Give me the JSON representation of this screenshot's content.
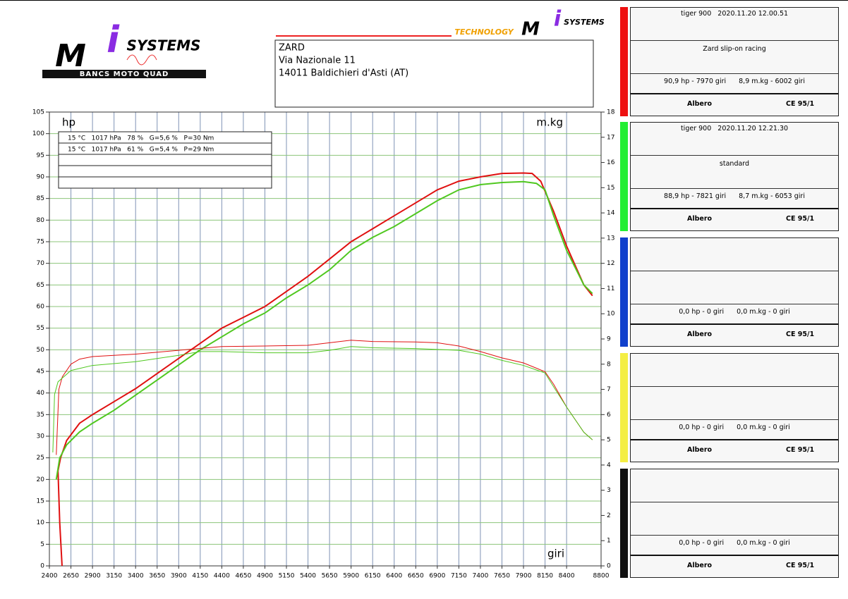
{
  "header": {
    "logo_left": {
      "letter_m": "M",
      "letter_i": "i",
      "word": "SYSTEMS",
      "tagline": "BANCS MOTO QUAD"
    },
    "logo_right": {
      "tech": "TECHNOLOGY",
      "letter_m": "M",
      "letter_i": "i",
      "word": "SYSTEMS"
    },
    "address": [
      "ZARD",
      "Via Nazionale 11",
      "14011 Baldichieri d'Asti (AT)"
    ]
  },
  "conditions": [
    "15 °C   1017 hPa   78 %   G=5,6 %   P=30 Nm",
    "15 °C   1017 hPa   61 %   G=5,4 %   P=29 Nm"
  ],
  "chart_data": {
    "type": "line",
    "y_label": "hp",
    "y2_label": "m.kg",
    "x_label": "giri",
    "xlim": [
      2400,
      8800
    ],
    "xticks": [
      2400,
      2650,
      2900,
      3150,
      3400,
      3650,
      3900,
      4150,
      4400,
      4650,
      4900,
      5150,
      5400,
      5650,
      5900,
      6150,
      6400,
      6650,
      6900,
      7150,
      7400,
      7650,
      7900,
      8150,
      8400,
      8800
    ],
    "ylim": [
      0,
      105
    ],
    "yticks": [
      0,
      5,
      10,
      15,
      20,
      25,
      30,
      35,
      40,
      45,
      50,
      55,
      60,
      65,
      70,
      75,
      80,
      85,
      90,
      95,
      100,
      105
    ],
    "y2lim": [
      0,
      18
    ],
    "y2ticks": [
      0,
      1,
      2,
      3,
      4,
      5,
      6,
      7,
      8,
      9,
      10,
      11,
      12,
      13,
      14,
      15,
      16,
      17,
      18
    ],
    "grid": true,
    "series": [
      {
        "name": "hp red",
        "color": "#e01010",
        "width": 2,
        "x": [
          2547,
          2520,
          2500,
          2530,
          2600,
          2750,
          2900,
          3150,
          3400,
          3650,
          3900,
          4150,
          4400,
          4650,
          4900,
          5150,
          5400,
          5650,
          5900,
          6150,
          6400,
          6650,
          6900,
          7150,
          7400,
          7650,
          7900,
          8000,
          8100,
          8250,
          8400,
          8600,
          8700
        ],
        "values": [
          0,
          10,
          22,
          25,
          29,
          33,
          35,
          38,
          41,
          44.5,
          48,
          51.5,
          55,
          57.5,
          60,
          63.5,
          67,
          71,
          75,
          78,
          81,
          84,
          87,
          89,
          90,
          90.8,
          90.9,
          90.8,
          89,
          82,
          74,
          65,
          62.5
        ]
      },
      {
        "name": "hp green",
        "color": "#50c820",
        "width": 2,
        "x": [
          2480,
          2520,
          2600,
          2750,
          2900,
          3150,
          3400,
          3650,
          3900,
          4150,
          4400,
          4650,
          4900,
          5150,
          5400,
          5650,
          5900,
          6150,
          6400,
          6650,
          6900,
          7150,
          7400,
          7650,
          7900,
          8050,
          8150,
          8250,
          8400,
          8600,
          8700
        ],
        "values": [
          20,
          25,
          28,
          31,
          33,
          36,
          39.5,
          43,
          46.5,
          50,
          53,
          56,
          58.5,
          62,
          65,
          68.5,
          73,
          76,
          78.5,
          81.5,
          84.5,
          87,
          88.2,
          88.7,
          88.9,
          88.5,
          87,
          81,
          73,
          65,
          63
        ]
      },
      {
        "name": "m.kg red",
        "color": "#e01010",
        "width": 1,
        "axis": "y2",
        "x": [
          2480,
          2510,
          2550,
          2650,
          2750,
          2900,
          3400,
          3900,
          4400,
          4900,
          5400,
          5650,
          5900,
          6150,
          6650,
          6900,
          7150,
          7400,
          7650,
          7900,
          8150,
          8250,
          8400,
          8600,
          8700
        ],
        "values": [
          4.4,
          7,
          7.5,
          8,
          8.2,
          8.3,
          8.4,
          8.55,
          8.7,
          8.72,
          8.75,
          8.85,
          8.95,
          8.9,
          8.88,
          8.85,
          8.72,
          8.5,
          8.25,
          8.05,
          7.7,
          7.2,
          6.3,
          5.3,
          5.0
        ]
      },
      {
        "name": "m.kg green",
        "color": "#50c820",
        "width": 1,
        "axis": "y2",
        "x": [
          2440,
          2460,
          2500,
          2650,
          2900,
          3400,
          3900,
          4150,
          4400,
          4900,
          5400,
          5650,
          5900,
          6150,
          6650,
          7150,
          7400,
          7650,
          7900,
          8150,
          8250,
          8400,
          8600,
          8700
        ],
        "values": [
          4.5,
          6.8,
          7.3,
          7.75,
          7.95,
          8.1,
          8.35,
          8.5,
          8.5,
          8.45,
          8.45,
          8.55,
          8.7,
          8.65,
          8.62,
          8.55,
          8.4,
          8.15,
          7.95,
          7.65,
          7.1,
          6.3,
          5.3,
          5.0
        ]
      }
    ]
  },
  "panels": [
    {
      "color": "#ee1111",
      "title": "tiger 900   2020.11.20 12.00.51",
      "note": "Zard slip-on racing",
      "hp": "90,9 hp - 7970 giri",
      "torque": "8,9 m.kg - 6002 giri",
      "shaft": "Albero",
      "norm": "CE 95/1"
    },
    {
      "color": "#22ee33",
      "title": "tiger 900   2020.11.20 12.21.30",
      "note": "standard",
      "hp": "88,9 hp - 7821 giri",
      "torque": "8,7 m.kg - 6053 giri",
      "shaft": "Albero",
      "norm": "CE 95/1"
    },
    {
      "color": "#1040cc",
      "hp": "0,0 hp - 0 giri",
      "torque": "0,0 m.kg - 0 giri",
      "shaft": "Albero",
      "norm": "CE 95/1"
    },
    {
      "color": "#f4ee44",
      "hp": "0,0 hp - 0 giri",
      "torque": "0,0 m.kg - 0 giri",
      "shaft": "Albero",
      "norm": "CE 95/1"
    },
    {
      "color": "#111111",
      "hp": "0,0 hp - 0 giri",
      "torque": "0,0 m.kg - 0 giri",
      "shaft": "Albero",
      "norm": "CE 95/1"
    }
  ]
}
